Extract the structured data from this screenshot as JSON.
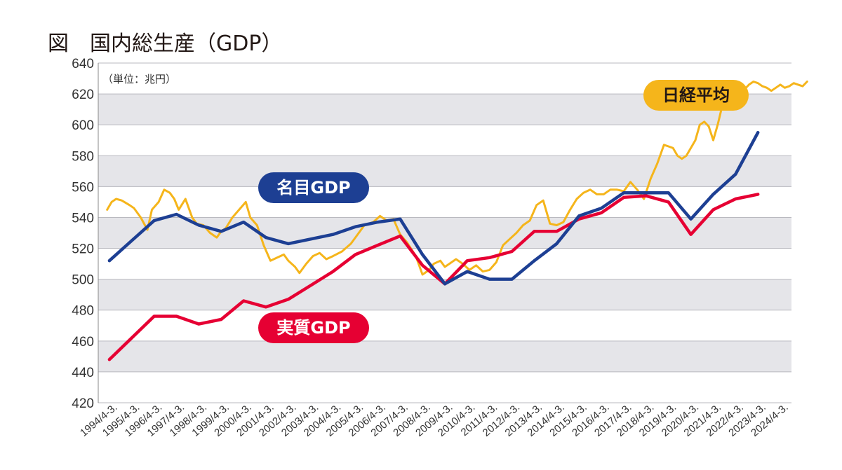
{
  "chart_data": {
    "type": "line",
    "title": "図　国内総生産（GDP）",
    "unit_label": "（単位：兆円）",
    "ylim": [
      420,
      640
    ],
    "yticks": [
      "420",
      "440",
      "460",
      "480",
      "500",
      "520",
      "540",
      "560",
      "580",
      "600",
      "620",
      "640"
    ],
    "categories": [
      "1994/4-3.",
      "1995/4-3.",
      "1996/4-3.",
      "1997/4-3.",
      "1998/4-3.",
      "1999/4-3.",
      "2000/4-3.",
      "2001/4-3.",
      "2002/4-3.",
      "2003/4-3.",
      "2004/4-3.",
      "2005/4-3.",
      "2006/4-3.",
      "2007/4-3.",
      "2008/4-3.",
      "2009/4-3.",
      "2010/4-3.",
      "2011/4-3.",
      "2012/4-3.",
      "2013/4-3.",
      "2014/4-3.",
      "2015/4-3.",
      "2016/4-3.",
      "2017/4-3.",
      "2018/4-3.",
      "2019/4-3.",
      "2020/4-3.",
      "2021/4-3.",
      "2022/4-3.",
      "2023/4-3.",
      "2024/4-3."
    ],
    "grid": "alternating bands",
    "series": [
      {
        "name": "名目GDP",
        "color": "#1d3f93",
        "x": [
          0,
          1,
          2,
          3,
          4,
          5,
          6,
          7,
          8,
          9,
          10,
          11,
          12,
          13,
          14,
          15,
          16,
          17,
          18,
          19,
          20,
          21,
          22,
          23,
          24,
          25,
          26,
          27,
          28,
          29
        ],
        "values": [
          512,
          525,
          538,
          542,
          535,
          531,
          537,
          527,
          523,
          526,
          529,
          534,
          537,
          539,
          516,
          497,
          505,
          500,
          500,
          512,
          523,
          541,
          546,
          556,
          556,
          556,
          539,
          555,
          568,
          595
        ]
      },
      {
        "name": "実質GDP",
        "color": "#e60033",
        "x": [
          0,
          1,
          2,
          3,
          4,
          5,
          6,
          7,
          8,
          9,
          10,
          11,
          12,
          13,
          14,
          15,
          16,
          17,
          18,
          19,
          20,
          21,
          22,
          23,
          24,
          25,
          26,
          27,
          28,
          29
        ],
        "values": [
          448,
          462,
          476,
          476,
          471,
          474,
          486,
          482,
          487,
          496,
          505,
          516,
          522,
          528,
          509,
          497,
          512,
          514,
          518,
          531,
          531,
          539,
          543,
          553,
          554,
          550,
          529,
          545,
          552,
          555
        ]
      },
      {
        "name": "日経平均",
        "color": "#f5b51b",
        "x": [
          -0.1,
          0.1,
          0.3,
          0.55,
          0.9,
          1.1,
          1.4,
          1.7,
          1.9,
          2.2,
          2.45,
          2.7,
          2.9,
          3.1,
          3.4,
          3.7,
          3.9,
          4.2,
          4.5,
          4.8,
          5.0,
          5.2,
          5.5,
          5.8,
          6.1,
          6.3,
          6.6,
          6.9,
          7.2,
          7.5,
          7.8,
          8.0,
          8.3,
          8.5,
          8.8,
          9.1,
          9.4,
          9.7,
          10.0,
          10.4,
          10.8,
          11.1,
          11.4,
          11.8,
          12.1,
          12.4,
          12.7,
          13.0,
          13.3,
          13.7,
          14.0,
          14.3,
          14.5,
          14.8,
          15.0,
          15.2,
          15.5,
          15.8,
          16.1,
          16.4,
          16.7,
          17.0,
          17.3,
          17.6,
          17.9,
          18.2,
          18.5,
          18.8,
          19.1,
          19.4,
          19.7,
          20.0,
          20.3,
          20.6,
          20.9,
          21.2,
          21.5,
          21.8,
          22.1,
          22.4,
          22.7,
          23.0,
          23.3,
          23.6,
          23.9,
          24.2,
          24.5,
          24.8,
          25.0,
          25.2,
          25.4,
          25.6,
          25.8,
          26.0,
          26.2,
          26.4,
          26.6,
          26.8,
          27.0,
          27.2,
          27.4,
          27.6,
          27.8,
          28.0,
          28.2,
          28.4,
          28.6,
          28.8,
          29.0,
          29.2,
          29.4,
          29.6,
          29.8,
          30.0,
          30.2,
          30.4,
          30.6,
          30.8,
          31.0,
          31.2
        ],
        "values": [
          545,
          550,
          552,
          551,
          548,
          546,
          540,
          532,
          545,
          550,
          558,
          556,
          552,
          545,
          552,
          540,
          536,
          535,
          530,
          527,
          531,
          533,
          540,
          545,
          550,
          540,
          535,
          522,
          512,
          514,
          516,
          512,
          508,
          504,
          510,
          515,
          517,
          513,
          515,
          518,
          523,
          529,
          535,
          537,
          541,
          538,
          539,
          529,
          524,
          515,
          503,
          506,
          510,
          512,
          508,
          510,
          513,
          510,
          506,
          509,
          505,
          506,
          511,
          522,
          526,
          530,
          535,
          538,
          548,
          551,
          536,
          535,
          537,
          545,
          552,
          556,
          558,
          555,
          555,
          558,
          558,
          557,
          563,
          558,
          552,
          565,
          575,
          587,
          586,
          585,
          580,
          578,
          580,
          585,
          590,
          600,
          602,
          599,
          590,
          600,
          612,
          623,
          628,
          627,
          624,
          623,
          626,
          628,
          627,
          625,
          624,
          622,
          624,
          626,
          624,
          625,
          627,
          626,
          625,
          628
        ]
      }
    ],
    "labels": {
      "nominal": "名目GDP",
      "real": "実質GDP",
      "nikkei": "日経平均"
    }
  }
}
